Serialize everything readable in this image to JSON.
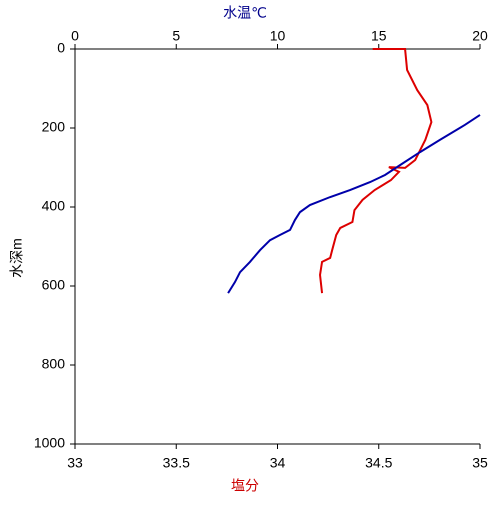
{
  "chart_data": {
    "type": "line",
    "xlabel": "塩分",
    "xlabel_color": "#cc0000",
    "x2label": "水温℃",
    "x2label_color": "#00008b",
    "ylabel": "水深m",
    "xlim": [
      33,
      35
    ],
    "xticks": [
      33,
      33.5,
      34,
      34.5,
      35
    ],
    "x2lim": [
      0,
      20
    ],
    "x2ticks": [
      0,
      5,
      10,
      15,
      20
    ],
    "ylim": [
      0,
      1000
    ],
    "yticks": [
      0,
      200,
      400,
      600,
      800,
      1000
    ],
    "y_inverted": true,
    "series": [
      {
        "color": "#dd0000",
        "axis": "x",
        "x": [
          34.47,
          34.63,
          34.64,
          34.69,
          34.74,
          34.76,
          34.73,
          34.68,
          34.63,
          34.55,
          34.6,
          34.56,
          34.48,
          34.42,
          34.38,
          34.37,
          34.31,
          34.29,
          34.27,
          34.26,
          34.22,
          34.21,
          34.22
        ],
        "values": [
          0,
          0,
          53,
          104,
          142,
          185,
          230,
          281,
          301,
          299,
          311,
          332,
          357,
          382,
          408,
          438,
          453,
          471,
          509,
          529,
          539,
          572,
          618
        ]
      },
      {
        "color": "#0000aa",
        "axis": "x2",
        "x": [
          20.0,
          19.26,
          18.02,
          17.04,
          16.05,
          15.31,
          14.57,
          13.58,
          12.59,
          11.6,
          11.11,
          10.86,
          10.62,
          10.12,
          9.63,
          9.14,
          8.64,
          8.15,
          7.9,
          7.56
        ],
        "values": [
          167,
          192,
          230,
          261,
          294,
          319,
          337,
          357,
          375,
          395,
          413,
          433,
          458,
          471,
          484,
          509,
          539,
          565,
          590,
          618
        ]
      }
    ]
  }
}
